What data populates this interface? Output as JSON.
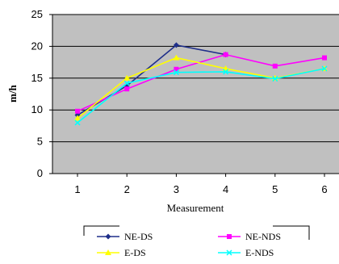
{
  "chart_data": {
    "type": "line",
    "title": "",
    "xlabel": "Measurement",
    "ylabel": "m/h",
    "x": [
      "1",
      "2",
      "3",
      "4",
      "5",
      "6"
    ],
    "y_ticks": [
      "0",
      "5",
      "10",
      "15",
      "20",
      "25"
    ],
    "ylim": [
      0,
      25
    ],
    "grid": "horizontal",
    "legend": "bottom",
    "plot_background": "#c0c0c0",
    "series": [
      {
        "name": "NE-DS",
        "values": [
          9.2,
          13.8,
          20.2,
          18.7,
          null,
          null
        ],
        "color": "#1f2f8a",
        "marker": "diamond"
      },
      {
        "name": "NE-NDS",
        "values": [
          9.8,
          13.3,
          16.4,
          18.7,
          16.9,
          18.2
        ],
        "color": "#ff00ff",
        "marker": "square"
      },
      {
        "name": "E-DS",
        "values": [
          8.7,
          15.0,
          18.2,
          16.5,
          15.0,
          16.5
        ],
        "color": "#ffff00",
        "marker": "triangle"
      },
      {
        "name": "E-NDS",
        "values": [
          8.0,
          14.2,
          15.9,
          16.0,
          14.9,
          16.5
        ],
        "color": "#00ffff",
        "marker": "x"
      }
    ]
  }
}
